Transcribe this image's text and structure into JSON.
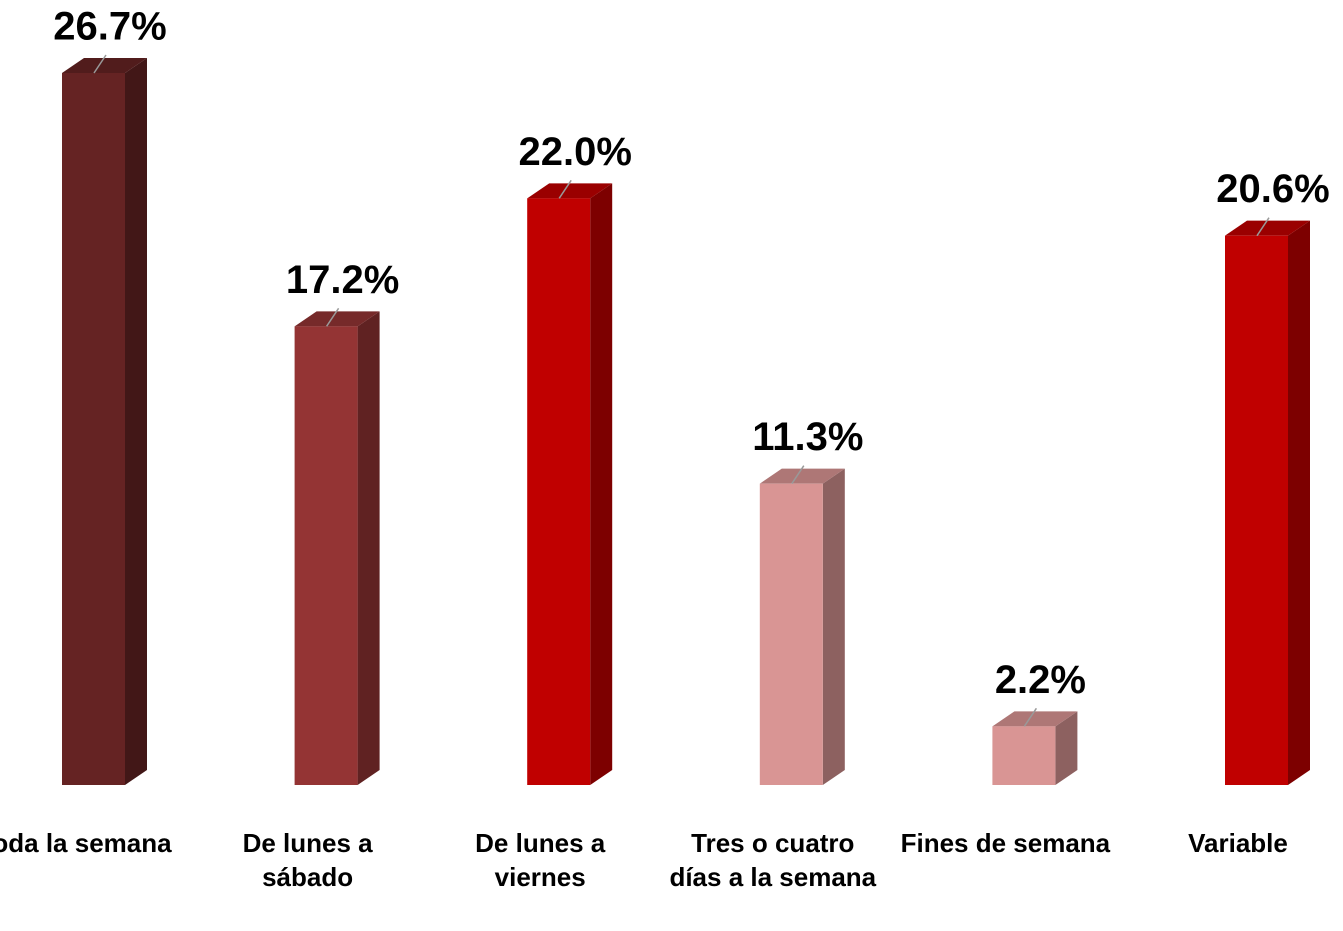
{
  "chart_data": {
    "type": "bar3d",
    "categories": [
      "Toda la semana",
      "De lunes a sábado",
      "De lunes a viernes",
      "Tres o cuatro días a la semana",
      "Fines de semana",
      "Variable"
    ],
    "values": [
      26.7,
      17.2,
      22.0,
      11.3,
      2.2,
      20.6
    ],
    "value_labels": [
      "26.7%",
      "17.2%",
      "22.0%",
      "11.3%",
      "2.2%",
      "20.6%"
    ],
    "colors": [
      "#652323",
      "#943434",
      "#c00000",
      "#d99594",
      "#d99594",
      "#c00000"
    ]
  }
}
